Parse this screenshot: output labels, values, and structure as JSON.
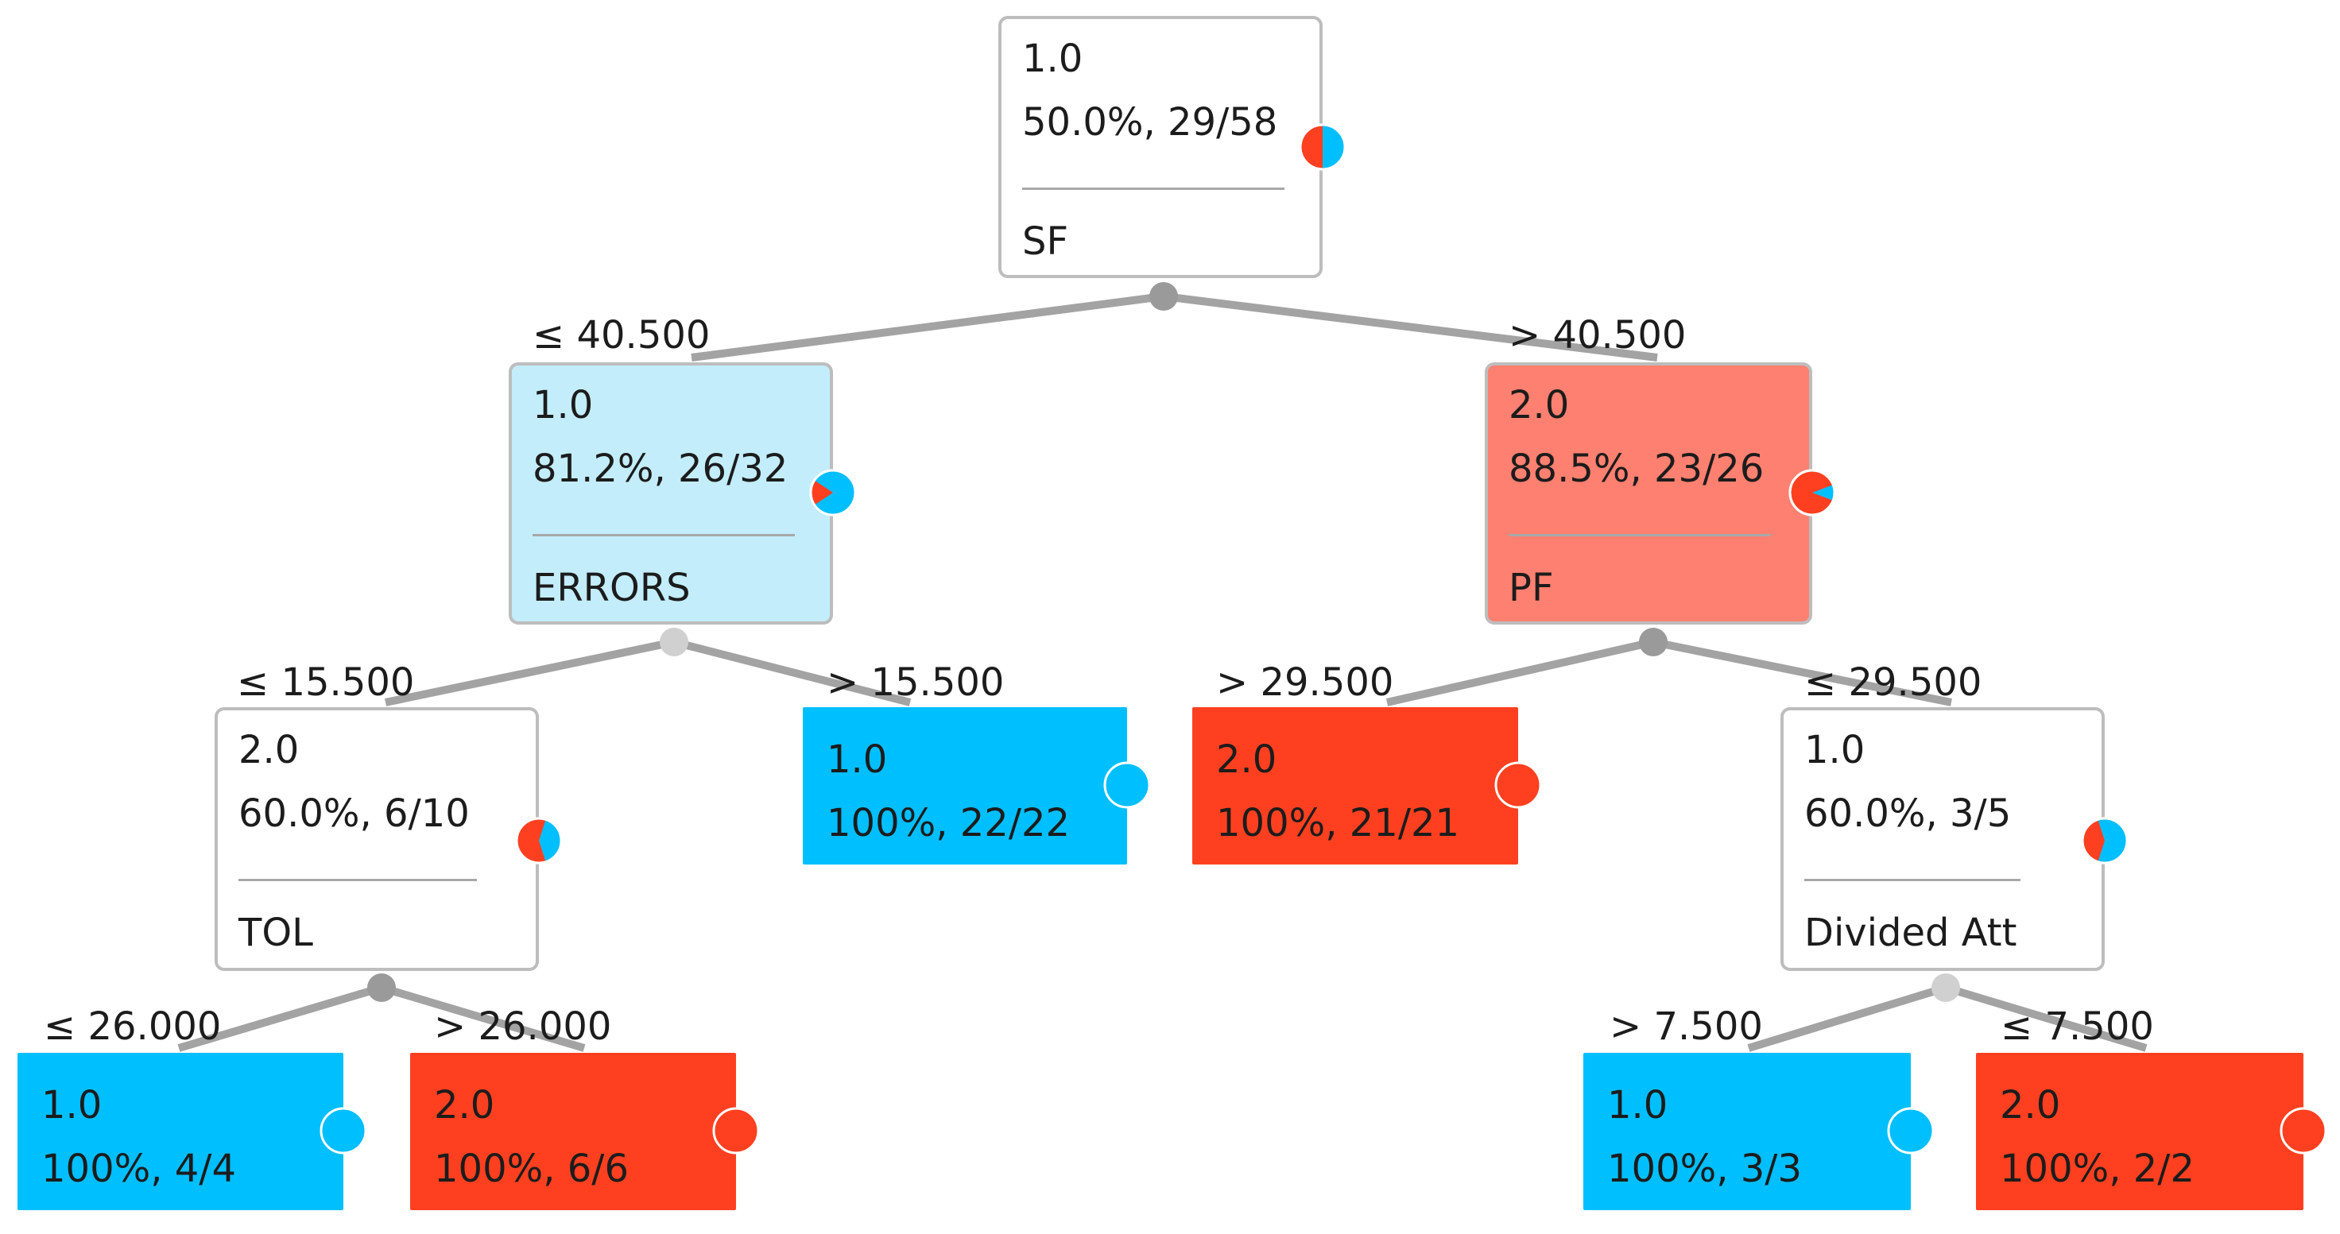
{
  "colors": {
    "class1": "#00bfff",
    "class2": "#ff4020",
    "class1_light": "#c3edfb",
    "class2_light": "#fe8070",
    "neutral": "#ffffff"
  },
  "nodes": {
    "root": {
      "cls": "1.0",
      "pct": "50.0%, 29/58",
      "attr": "SF",
      "class1_fraction": 0.5
    },
    "n_err": {
      "cls": "1.0",
      "pct": "81.2%, 26/32",
      "attr": "ERRORS",
      "class1_fraction": 0.8125
    },
    "n_pf": {
      "cls": "2.0",
      "pct": "88.5%, 23/26",
      "attr": "PF",
      "class1_fraction": 0.115
    },
    "n_tol": {
      "cls": "2.0",
      "pct": "60.0%, 6/10",
      "attr": "TOL",
      "class1_fraction": 0.4
    },
    "leaf_a": {
      "cls": "1.0",
      "pct": "100%, 22/22",
      "class1_fraction": 1.0
    },
    "leaf_b": {
      "cls": "2.0",
      "pct": "100%, 21/21",
      "class1_fraction": 0.0
    },
    "n_div": {
      "cls": "1.0",
      "pct": "60.0%, 3/5",
      "attr": "Divided Att",
      "class1_fraction": 0.6
    },
    "leaf_c": {
      "cls": "1.0",
      "pct": "100%, 4/4",
      "class1_fraction": 1.0
    },
    "leaf_d": {
      "cls": "2.0",
      "pct": "100%, 6/6",
      "class1_fraction": 0.0
    },
    "leaf_e": {
      "cls": "1.0",
      "pct": "100%, 3/3",
      "class1_fraction": 1.0
    },
    "leaf_f": {
      "cls": "2.0",
      "pct": "100%, 2/2",
      "class1_fraction": 0.0
    }
  },
  "edges": {
    "root_left": "≤ 40.500",
    "root_right": "> 40.500",
    "err_left": "≤ 15.500",
    "err_right": "> 15.500",
    "pf_left": "> 29.500",
    "pf_right": "≤ 29.500",
    "tol_left": "≤ 26.000",
    "tol_right": "> 26.000",
    "div_left": "> 7.500",
    "div_right": "≤ 7.500"
  }
}
